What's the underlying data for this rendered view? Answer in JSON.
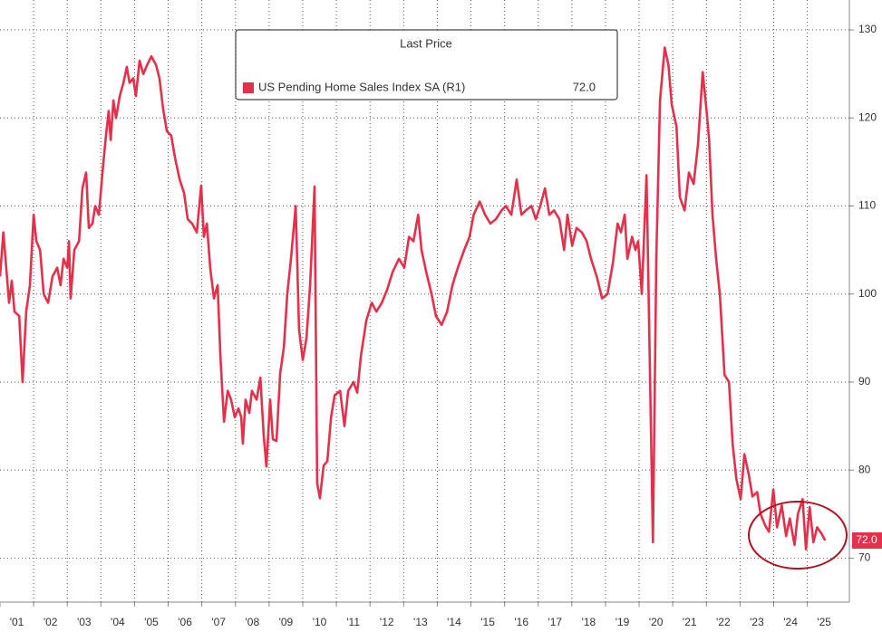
{
  "chart_data": {
    "type": "line",
    "legend_title": "Last Price",
    "last_label": "72.0",
    "xlim": [
      2001,
      2026.25
    ],
    "ylim": [
      65,
      133.4
    ],
    "yticks": [
      70,
      80,
      90,
      100,
      110,
      120,
      130
    ],
    "xticks": [
      {
        "value": 2001.5,
        "label": "'01"
      },
      {
        "value": 2002.5,
        "label": "'02"
      },
      {
        "value": 2003.5,
        "label": "'03"
      },
      {
        "value": 2004.5,
        "label": "'04"
      },
      {
        "value": 2005.5,
        "label": "'05"
      },
      {
        "value": 2006.5,
        "label": "'06"
      },
      {
        "value": 2007.5,
        "label": "'07"
      },
      {
        "value": 2008.5,
        "label": "'08"
      },
      {
        "value": 2009.5,
        "label": "'09"
      },
      {
        "value": 2010.5,
        "label": "'10"
      },
      {
        "value": 2011.5,
        "label": "'11"
      },
      {
        "value": 2012.5,
        "label": "'12"
      },
      {
        "value": 2013.5,
        "label": "'13"
      },
      {
        "value": 2014.5,
        "label": "'14"
      },
      {
        "value": 2015.5,
        "label": "'15"
      },
      {
        "value": 2016.5,
        "label": "'16"
      },
      {
        "value": 2017.5,
        "label": "'17"
      },
      {
        "value": 2018.5,
        "label": "'18"
      },
      {
        "value": 2019.5,
        "label": "'19"
      },
      {
        "value": 2020.5,
        "label": "'20"
      },
      {
        "value": 2021.5,
        "label": "'21"
      },
      {
        "value": 2022.5,
        "label": "'22"
      },
      {
        "value": 2023.5,
        "label": "'23"
      },
      {
        "value": 2024.5,
        "label": "'24"
      },
      {
        "value": 2025.5,
        "label": "'25"
      }
    ],
    "grid": true,
    "x": [
      2001.0,
      2001.1,
      2001.27,
      2001.35,
      2001.43,
      2001.57,
      2001.67,
      2001.78,
      2001.89,
      2002.0,
      2002.08,
      2002.19,
      2002.3,
      2002.43,
      2002.56,
      2002.7,
      2002.8,
      2002.89,
      2003.0,
      2003.05,
      2003.1,
      2003.21,
      2003.35,
      2003.45,
      2003.56,
      2003.64,
      2003.75,
      2003.83,
      2003.94,
      2004.05,
      2004.15,
      2004.23,
      2004.29,
      2004.37,
      2004.45,
      2004.56,
      2004.67,
      2004.77,
      2004.85,
      2004.96,
      2005.04,
      2005.15,
      2005.26,
      2005.37,
      2005.5,
      2005.64,
      2005.74,
      2005.85,
      2005.96,
      2006.09,
      2006.2,
      2006.34,
      2006.47,
      2006.58,
      2006.71,
      2006.85,
      2006.98,
      2007.06,
      2007.15,
      2007.25,
      2007.36,
      2007.47,
      2007.55,
      2007.66,
      2007.77,
      2007.87,
      2007.98,
      2008.09,
      2008.17,
      2008.22,
      2008.3,
      2008.41,
      2008.49,
      2008.63,
      2008.74,
      2008.84,
      2008.92,
      2009.03,
      2009.11,
      2009.22,
      2009.33,
      2009.44,
      2009.54,
      2009.65,
      2009.79,
      2009.89,
      2010.0,
      2010.11,
      2010.22,
      2010.35,
      2010.43,
      2010.51,
      2010.62,
      2010.73,
      2010.84,
      2010.95,
      2011.11,
      2011.24,
      2011.35,
      2011.51,
      2011.62,
      2011.73,
      2011.89,
      2012.05,
      2012.19,
      2012.35,
      2012.51,
      2012.67,
      2012.86,
      2013.02,
      2013.16,
      2013.29,
      2013.43,
      2013.53,
      2013.67,
      2013.83,
      2013.96,
      2014.13,
      2014.29,
      2014.45,
      2014.61,
      2014.8,
      2014.96,
      2015.08,
      2015.26,
      2015.42,
      2015.58,
      2015.74,
      2015.91,
      2016.04,
      2016.2,
      2016.36,
      2016.5,
      2016.63,
      2016.8,
      2016.93,
      2017.06,
      2017.2,
      2017.33,
      2017.47,
      2017.63,
      2017.77,
      2017.87,
      2018.01,
      2018.14,
      2018.3,
      2018.44,
      2018.57,
      2018.74,
      2018.9,
      2019.06,
      2019.22,
      2019.36,
      2019.46,
      2019.57,
      2019.65,
      2019.79,
      2019.89,
      2019.97,
      2020.08,
      2020.22,
      2020.3,
      2020.41,
      2020.51,
      2020.62,
      2020.76,
      2020.87,
      2020.97,
      2021.11,
      2021.21,
      2021.35,
      2021.48,
      2021.62,
      2021.75,
      2021.89,
      2022.0,
      2022.08,
      2022.18,
      2022.29,
      2022.4,
      2022.54,
      2022.67,
      2022.78,
      2022.89,
      2023.02,
      2023.13,
      2023.26,
      2023.37,
      2023.51,
      2023.61,
      2023.75,
      2023.86,
      2023.99,
      2024.1,
      2024.24,
      2024.37,
      2024.48,
      2024.62,
      2024.72,
      2024.86,
      2024.96,
      2025.07,
      2025.18,
      2025.29,
      2025.42,
      2025.53
    ],
    "series": [
      {
        "name": "US Pending Home Sales Index SA  (R1)",
        "color": "#e5304b",
        "values": [
          102,
          107,
          99,
          101.5,
          98,
          97.5,
          90,
          98,
          101,
          109,
          106,
          105,
          100,
          99,
          102,
          103,
          101,
          104,
          103,
          106,
          99.5,
          105,
          106,
          112,
          113.8,
          107.5,
          108,
          110,
          109,
          114,
          118,
          120.8,
          117.5,
          122,
          120,
          122.5,
          124,
          125.8,
          124,
          124.5,
          122.5,
          126.5,
          125,
          126,
          127,
          126,
          124.5,
          121,
          118.5,
          118,
          115.5,
          113,
          111.5,
          108.5,
          108,
          107,
          112.3,
          106.5,
          108,
          103,
          99.5,
          101,
          93,
          85.5,
          89,
          88,
          86,
          87,
          86,
          83,
          88,
          86.5,
          89,
          88,
          90.5,
          84,
          80.4,
          88,
          83.5,
          83.3,
          91,
          94,
          100,
          104,
          110,
          96,
          92.5,
          95,
          101,
          112.2,
          78.5,
          76.8,
          80.5,
          81,
          86,
          88.5,
          89,
          85,
          89,
          90,
          88.8,
          93,
          97,
          99,
          98,
          99,
          100.5,
          102.5,
          104,
          103,
          106.5,
          106,
          109,
          105,
          102.5,
          100,
          97.5,
          96.5,
          98,
          101,
          103,
          105,
          106.5,
          109,
          110.5,
          109,
          108,
          108.5,
          109.5,
          110,
          109,
          113,
          109,
          109.5,
          110,
          108.5,
          110,
          112,
          109,
          109.5,
          108.5,
          105,
          109,
          105.5,
          107.5,
          107,
          106,
          104,
          102,
          99.5,
          100,
          103.5,
          108,
          107,
          109,
          104,
          106.5,
          105,
          106,
          100,
          113.5,
          96,
          71.8,
          104,
          122,
          128,
          126,
          121.5,
          119,
          111,
          109.5,
          113.8,
          112.5,
          117,
          125.2,
          121,
          117.5,
          109,
          104,
          100,
          90.8,
          90,
          83,
          79,
          76.7,
          81.8,
          79.5,
          77,
          77.5,
          75,
          73.7,
          73,
          77.8,
          73.5,
          76,
          72.5,
          74.5,
          71.5,
          75,
          76.7,
          71,
          75.8,
          71.8,
          73.5,
          72.8,
          72.0
        ]
      }
    ]
  }
}
